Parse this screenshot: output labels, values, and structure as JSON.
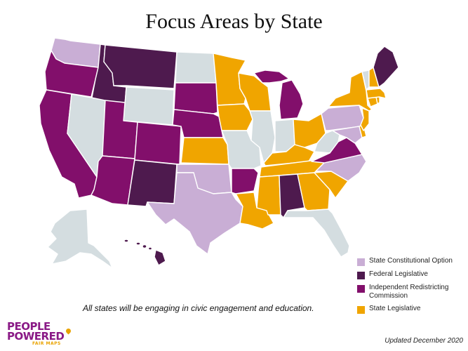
{
  "title": "Focus Areas by State",
  "colors": {
    "state_constitutional": "#c9aed5",
    "federal_legislative": "#4e1a4e",
    "independent_commission": "#820f6b",
    "state_legislative": "#f0a500",
    "none": "#d4dde0"
  },
  "legend": [
    {
      "key": "state_constitutional",
      "label": "State Constitutional Option"
    },
    {
      "key": "federal_legislative",
      "label": "Federal Legislative"
    },
    {
      "key": "independent_commission",
      "label": "Independent Redistricting Commission"
    },
    {
      "key": "state_legislative",
      "label": "State Legislative"
    }
  ],
  "note": "All states will be engaging in civic engagement and education.",
  "logo": {
    "line1": "PEOPLE",
    "line2": "POWERED",
    "sub": "FAIR MAPS"
  },
  "updated": "Updated December 2020",
  "state_categories": {
    "WA": "state_constitutional",
    "OR": "independent_commission",
    "CA": "independent_commission",
    "ID": "federal_legislative",
    "NV": "none",
    "MT": "federal_legislative",
    "WY": "none",
    "UT": "independent_commission",
    "AZ": "independent_commission",
    "CO": "independent_commission",
    "NM": "federal_legislative",
    "ND": "none",
    "SD": "independent_commission",
    "NE": "independent_commission",
    "KS": "state_legislative",
    "OK": "state_constitutional",
    "TX": "state_constitutional",
    "MN": "state_legislative",
    "IA": "state_legislative",
    "MO": "none",
    "AR": "independent_commission",
    "LA": "state_legislative",
    "WI": "state_legislative",
    "IL": "none",
    "MI": "independent_commission",
    "IN": "none",
    "OH": "state_legislative",
    "KY": "state_legislative",
    "TN": "state_legislative",
    "MS": "state_legislative",
    "AL": "federal_legislative",
    "GA": "state_legislative",
    "FL": "none",
    "SC": "state_legislative",
    "NC": "state_constitutional",
    "VA": "independent_commission",
    "WV": "none",
    "PA": "state_constitutional",
    "NY": "state_legislative",
    "NJ": "state_legislative",
    "DE": "state_legislative",
    "MD": "state_constitutional",
    "CT": "state_legislative",
    "RI": "state_legislative",
    "MA": "state_legislative",
    "VT": "none",
    "NH": "state_legislative",
    "ME": "federal_legislative",
    "AK": "none",
    "HI": "federal_legislative"
  }
}
